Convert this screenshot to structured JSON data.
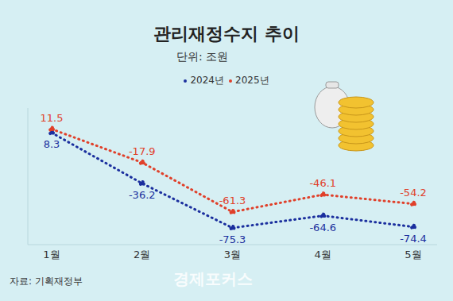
{
  "chart_data": {
    "type": "line",
    "title": "관리재정수지 추이",
    "subtitle": "단위: 조원",
    "source": "자료: 기획재정부",
    "watermark": "경제포커스",
    "categories": [
      "1월",
      "2월",
      "3월",
      "4월",
      "5월"
    ],
    "series": [
      {
        "name": "2024년",
        "color": "#1b2f9e",
        "values": [
          8.3,
          -36.2,
          -75.3,
          -64.6,
          -74.4
        ]
      },
      {
        "name": "2025년",
        "color": "#e0402a",
        "values": [
          11.5,
          -17.9,
          -61.3,
          -46.1,
          -54.2
        ]
      }
    ],
    "ylim": [
      -90,
      30
    ],
    "yticks": [],
    "tick_labels": "x",
    "grid": false,
    "legend": "top",
    "data_labels": true,
    "marker": "circle",
    "line_style": "dotted"
  }
}
